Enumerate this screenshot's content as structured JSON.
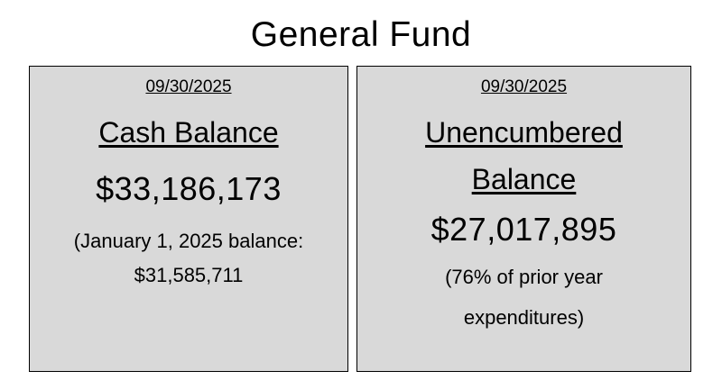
{
  "title": "General Fund",
  "cash_card": {
    "date": "09/30/2025",
    "heading": "Cash Balance",
    "amount": "$33,186,173",
    "note_line1": "(January 1, 2025 balance:",
    "note_line2": "$31,585,711"
  },
  "unencumbered_card": {
    "date": "09/30/2025",
    "heading_line1": "Unencumbered",
    "heading_line2": "Balance",
    "amount": "$27,017,895",
    "note_line1": "(76% of prior year",
    "note_line2": "expenditures)"
  },
  "colors": {
    "card_background": "#d9d9d9",
    "border": "#000000",
    "text": "#000000"
  }
}
